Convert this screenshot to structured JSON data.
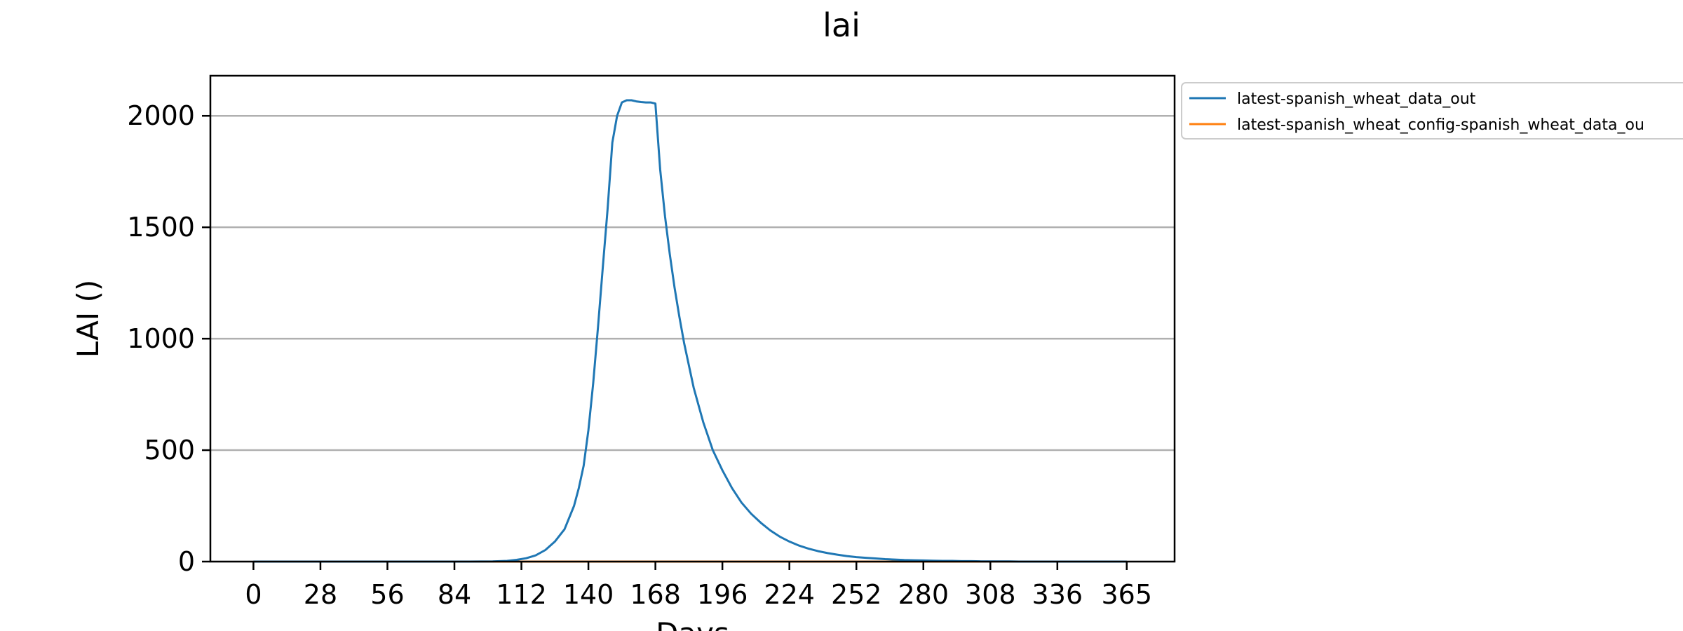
{
  "chart_data": {
    "type": "line",
    "title": "lai",
    "xlabel": "Days",
    "ylabel": "LAI ()",
    "xlim": [
      -18,
      385
    ],
    "ylim": [
      0,
      2180
    ],
    "xticks": [
      0,
      28,
      56,
      84,
      112,
      140,
      168,
      196,
      224,
      252,
      280,
      308,
      336,
      365
    ],
    "yticks": [
      0,
      500,
      1000,
      1500,
      2000
    ],
    "grid": "y-major",
    "legend": "outside-upper-right",
    "series": [
      {
        "name": "latest-spanish_wheat_data_out",
        "color": "#1f77b4",
        "x": [
          0,
          90,
          100,
          106,
          110,
          114,
          118,
          122,
          126,
          130,
          134,
          136,
          138,
          140,
          142,
          144,
          146,
          148,
          150,
          152,
          154,
          156,
          158,
          160,
          162,
          164,
          166,
          168,
          170,
          172,
          174,
          176,
          178,
          180,
          184,
          188,
          192,
          196,
          200,
          204,
          208,
          212,
          216,
          220,
          224,
          228,
          232,
          236,
          240,
          244,
          248,
          252,
          256,
          260,
          264,
          268,
          272,
          276,
          280,
          284,
          288,
          292,
          296,
          300,
          304,
          308,
          312,
          316,
          320,
          324,
          328,
          332,
          336,
          340,
          344,
          348,
          352,
          356,
          360,
          365
        ],
        "y": [
          0,
          0,
          1,
          3,
          8,
          15,
          28,
          52,
          90,
          145,
          250,
          330,
          430,
          590,
          800,
          1050,
          1320,
          1580,
          1880,
          2000,
          2060,
          2070,
          2070,
          2065,
          2062,
          2060,
          2060,
          2055,
          1760,
          1550,
          1380,
          1230,
          1100,
          980,
          780,
          625,
          500,
          410,
          330,
          265,
          215,
          175,
          140,
          112,
          90,
          72,
          58,
          47,
          38,
          31,
          25,
          20,
          17,
          14,
          11,
          9,
          7,
          6,
          5,
          4,
          3,
          3,
          2,
          2,
          1,
          1,
          1,
          1,
          0,
          0,
          0,
          0,
          0,
          0,
          0,
          0,
          0,
          0,
          0,
          0
        ]
      },
      {
        "name": "latest-spanish_wheat_config-spanish_wheat_data_ou",
        "color": "#ff7f0e",
        "x": [
          0,
          365
        ],
        "y": [
          0,
          0
        ]
      }
    ]
  }
}
